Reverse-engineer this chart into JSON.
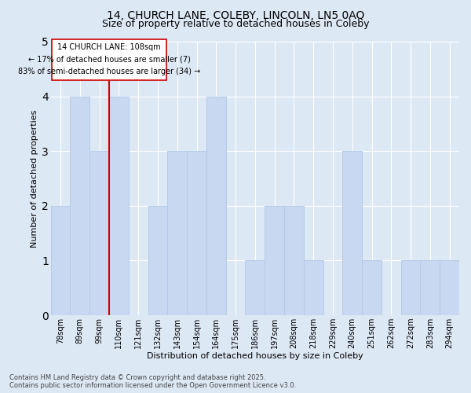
{
  "title1": "14, CHURCH LANE, COLEBY, LINCOLN, LN5 0AQ",
  "title2": "Size of property relative to detached houses in Coleby",
  "xlabel": "Distribution of detached houses by size in Coleby",
  "ylabel": "Number of detached properties",
  "bins": [
    "78sqm",
    "89sqm",
    "99sqm",
    "110sqm",
    "121sqm",
    "132sqm",
    "143sqm",
    "154sqm",
    "164sqm",
    "175sqm",
    "186sqm",
    "197sqm",
    "208sqm",
    "218sqm",
    "229sqm",
    "240sqm",
    "251sqm",
    "262sqm",
    "272sqm",
    "283sqm",
    "294sqm"
  ],
  "values": [
    2,
    4,
    3,
    4,
    0,
    2,
    3,
    3,
    4,
    0,
    1,
    2,
    2,
    1,
    0,
    3,
    1,
    0,
    1,
    1,
    1
  ],
  "bar_color": "#c8d8f0",
  "bar_edge_color": "#b0c8e8",
  "vline_color": "#cc0000",
  "annotation_text": "14 CHURCH LANE: 108sqm\n← 17% of detached houses are smaller (7)\n83% of semi-detached houses are larger (34) →",
  "annotation_box_color": "#ffffff",
  "annotation_box_edge": "#cc0000",
  "ylim": [
    0,
    5
  ],
  "yticks": [
    0,
    1,
    2,
    3,
    4,
    5
  ],
  "footnote": "Contains HM Land Registry data © Crown copyright and database right 2025.\nContains public sector information licensed under the Open Government Licence v3.0.",
  "bg_color": "#dde8f5",
  "plot_bg_color": "#dde8f5",
  "title1_fontsize": 10,
  "title2_fontsize": 9,
  "axis_label_fontsize": 8,
  "tick_fontsize": 7,
  "annotation_fontsize": 7,
  "footnote_fontsize": 6
}
